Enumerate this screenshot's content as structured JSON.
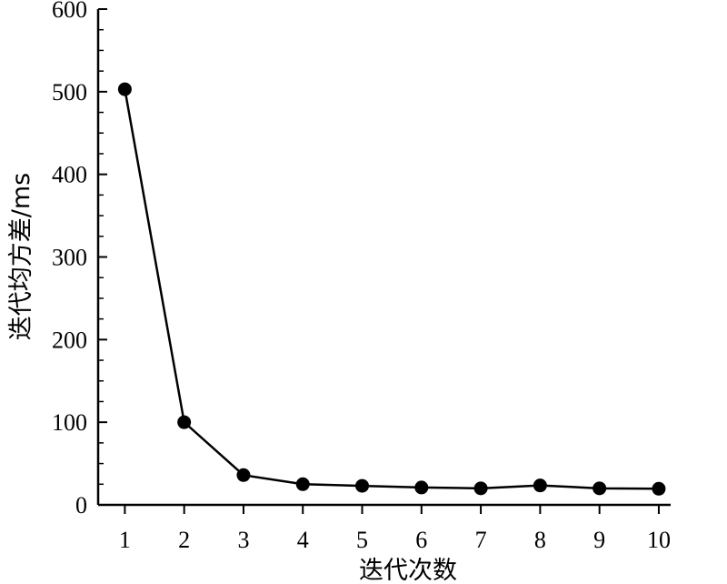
{
  "chart_data": {
    "type": "line",
    "xlabel": "迭代次数",
    "ylabel": "迭代均方差/ms",
    "x": [
      1,
      2,
      3,
      4,
      5,
      6,
      7,
      8,
      9,
      10
    ],
    "series": [
      {
        "values": [
          503,
          100,
          36,
          25,
          23,
          21,
          20,
          23.5,
          20,
          19.5
        ]
      }
    ],
    "ylim": [
      0,
      600
    ],
    "xlim": [
      0.55,
      10.2
    ],
    "xticks": [
      "1",
      "2",
      "3",
      "4",
      "5",
      "6",
      "7",
      "8",
      "9",
      "10"
    ],
    "yticks": [
      "0",
      "100",
      "200",
      "300",
      "400",
      "500",
      "600"
    ],
    "yticks_values": [
      0,
      100,
      200,
      300,
      400,
      500,
      600
    ],
    "y_minor_step": 25,
    "grid": false,
    "legend": "none",
    "marker": "filled-circle",
    "line_color": "#000000"
  }
}
